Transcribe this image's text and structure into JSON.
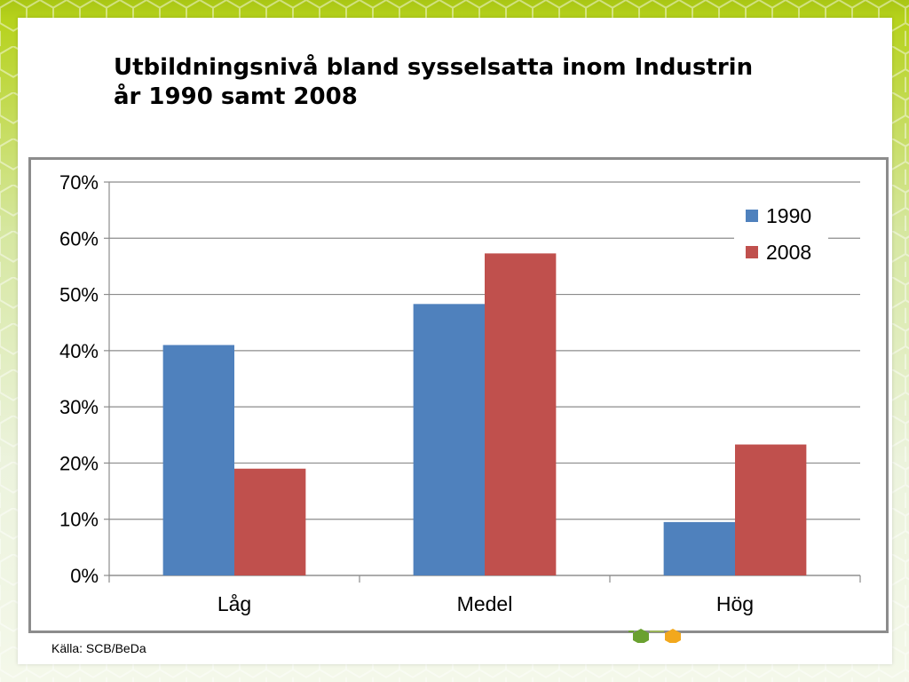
{
  "slide": {
    "title_line1": "Utbildningsnivå bland sysselsatta inom Industrin",
    "title_line2": "år 1990 samt 2008",
    "source": "Källa: SCB/BeDa"
  },
  "colors": {
    "series_1990": "#4f81bd",
    "series_2008": "#c0504d",
    "grid": "#8c8c8c",
    "frame": "#8c8c8c"
  },
  "chart_data": {
    "type": "bar",
    "title": "",
    "xlabel": "",
    "ylabel": "",
    "categories": [
      "Låg",
      "Medel",
      "Hög"
    ],
    "series": [
      {
        "name": "1990",
        "values": [
          41,
          48.3,
          9.5
        ]
      },
      {
        "name": "2008",
        "values": [
          19,
          57.3,
          23.3
        ]
      }
    ],
    "ylim": [
      0,
      70
    ],
    "yticks": [
      0,
      10,
      20,
      30,
      40,
      50,
      60,
      70
    ],
    "ytick_labels": [
      "0%",
      "10%",
      "20%",
      "30%",
      "40%",
      "50%",
      "60%",
      "70%"
    ],
    "grid": true,
    "legend_position": "top-right"
  }
}
